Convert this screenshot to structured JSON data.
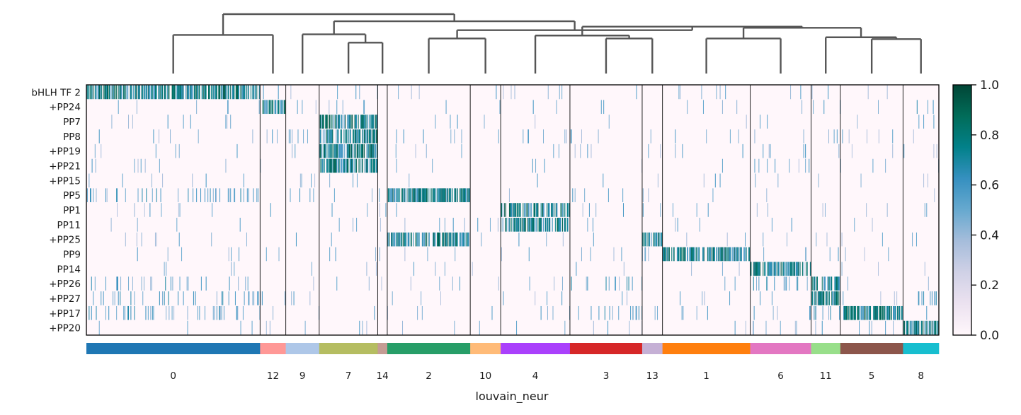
{
  "chart_data": {
    "type": "heatmap",
    "xlabel": "louvain_neur",
    "genes": [
      "bHLH TF 2",
      "+PP24",
      "PP7",
      "PP8",
      "+PP19",
      "+PP21",
      "+PP15",
      "PP5",
      "PP1",
      "PP11",
      "+PP25",
      "PP9",
      "PP14",
      "+PP26",
      "+PP27",
      "+PP17",
      "+PP20"
    ],
    "clusters": [
      {
        "label": "0",
        "color": "#1f77b4",
        "n_cells": 291
      },
      {
        "label": "12",
        "color": "#ff9896",
        "n_cells": 43
      },
      {
        "label": "9",
        "color": "#aec7e8",
        "n_cells": 56
      },
      {
        "label": "7",
        "color": "#b5bd61",
        "n_cells": 98
      },
      {
        "label": "14",
        "color": "#c49c94",
        "n_cells": 16
      },
      {
        "label": "2",
        "color": "#279e68",
        "n_cells": 139
      },
      {
        "label": "10",
        "color": "#ffbb78",
        "n_cells": 51
      },
      {
        "label": "4",
        "color": "#aa40fc",
        "n_cells": 116
      },
      {
        "label": "3",
        "color": "#d62728",
        "n_cells": 121
      },
      {
        "label": "13",
        "color": "#c5b0d5",
        "n_cells": 34
      },
      {
        "label": "1",
        "color": "#ff7f0e",
        "n_cells": 147
      },
      {
        "label": "6",
        "color": "#e377c2",
        "n_cells": 102
      },
      {
        "label": "11",
        "color": "#98df8a",
        "n_cells": 49
      },
      {
        "label": "5",
        "color": "#8c564b",
        "n_cells": 105
      },
      {
        "label": "8",
        "color": "#17becf",
        "n_cells": 60
      }
    ],
    "markers": {
      "0": [
        "bHLH TF 2"
      ],
      "12": [
        "+PP24"
      ],
      "7": [
        "PP7",
        "PP8",
        "+PP19",
        "+PP21"
      ],
      "2": [
        "PP5",
        "+PP25"
      ],
      "4": [
        "PP1",
        "PP11"
      ],
      "13": [
        "+PP25"
      ],
      "1": [
        "PP9"
      ],
      "6": [
        "PP14"
      ],
      "11": [
        "+PP26",
        "+PP27"
      ],
      "5": [
        "+PP17"
      ],
      "8": [
        "+PP20"
      ]
    },
    "dendrogram_leaf_order": [
      "0",
      "12",
      "9",
      "7",
      "14",
      "2",
      "10",
      "4",
      "3",
      "13",
      "1",
      "6",
      "11",
      "5",
      "8"
    ],
    "colorbar": {
      "vmin": 0.0,
      "vmax": 1.0,
      "ticks": [
        "0.0",
        "0.2",
        "0.4",
        "0.6",
        "0.8",
        "1.0"
      ],
      "colormap": [
        "#fff7fb",
        "#ece2f0",
        "#d0d1e6",
        "#a6bddb",
        "#67a9cf",
        "#3690c0",
        "#02818a",
        "#016c59",
        "#014636"
      ]
    }
  }
}
